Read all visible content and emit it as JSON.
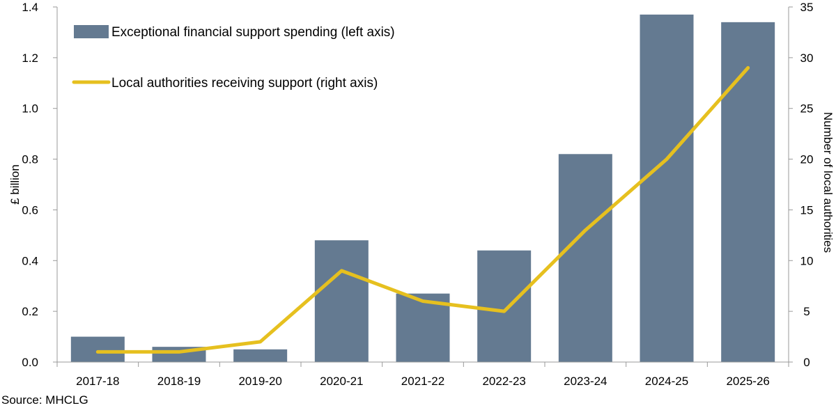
{
  "chart_data": {
    "type": "bar",
    "categories": [
      "2017-18",
      "2018-19",
      "2019-20",
      "2020-21",
      "2021-22",
      "2022-23",
      "2023-24",
      "2024-25",
      "2025-26"
    ],
    "series": [
      {
        "name": "Exceptional financial support spending (left axis)",
        "type": "bar",
        "axis": "left",
        "color": "#647a91",
        "values": [
          0.1,
          0.06,
          0.05,
          0.48,
          0.27,
          0.44,
          0.82,
          1.37,
          1.34
        ]
      },
      {
        "name": "Local authorities receiving support (right axis)",
        "type": "line",
        "axis": "right",
        "color": "#e6c01f",
        "values": [
          1,
          1,
          2,
          9,
          6,
          5,
          13,
          20,
          29
        ]
      }
    ],
    "ylabel": "£ billion",
    "y2label": "Number of local authorities",
    "ylim": [
      0,
      1.4
    ],
    "y2lim": [
      0,
      35
    ],
    "yticks": [
      "0.0",
      "0.2",
      "0.4",
      "0.6",
      "0.8",
      "1.0",
      "1.2",
      "1.4"
    ],
    "y2ticks": [
      "0",
      "5",
      "10",
      "15",
      "20",
      "25",
      "30",
      "35"
    ],
    "legend_position": "top-left",
    "grid": false
  },
  "source": "Source: MHCLG"
}
